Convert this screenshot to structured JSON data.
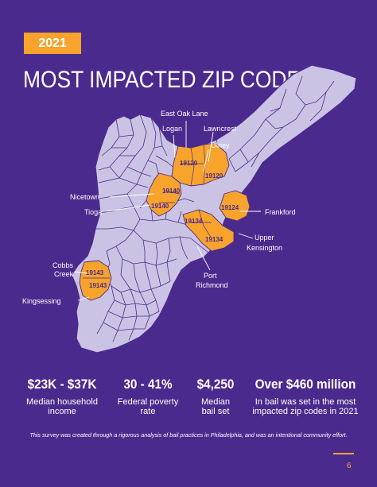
{
  "header": {
    "year": "2021",
    "title": "MOST IMPACTED ZIP CODES"
  },
  "map": {
    "base_color": "#cbc3e3",
    "highlight_color": "#f7a32c",
    "border_color": "#4b2a8e",
    "zip_labels": [
      "19120",
      "19120",
      "19140",
      "19140",
      "19124",
      "19134",
      "19134",
      "19143",
      "19143"
    ],
    "callouts": [
      "East Oak Lane",
      "Logan",
      "Lawncrest",
      "Olney",
      "Nicetown",
      "Tioga",
      "Frankford",
      "Upper",
      "Kensington",
      "Port",
      "Richmond",
      "Cobbs",
      "Creek",
      "Kingsessing"
    ]
  },
  "stats": [
    {
      "value": "$23K - $37K",
      "label_lines": [
        "Median household",
        "income"
      ]
    },
    {
      "value": "30 - 41%",
      "label_lines": [
        "Federal poverty",
        "rate"
      ]
    },
    {
      "value": "$4,250",
      "label_lines": [
        "Median",
        "bail set"
      ]
    },
    {
      "value": "Over $460 million",
      "label_lines": [
        "In bail was set in the most",
        "impacted zip codes in 2021"
      ]
    }
  ],
  "footnote": "This survey was created through a rigorous analysis of bail practices in Philadelphia, and was an intentional community effort.",
  "page_number": "6"
}
